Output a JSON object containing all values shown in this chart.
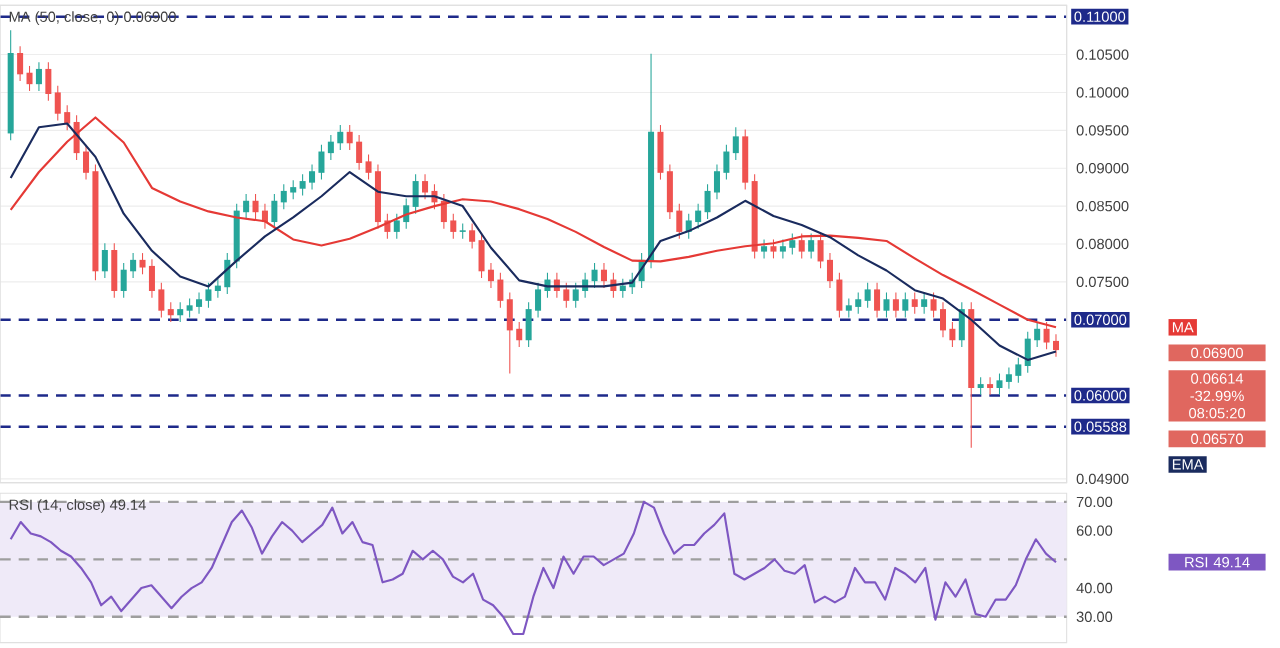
{
  "chart_data": [
    {
      "type": "candlestick",
      "categories": [
        null,
        null,
        null,
        null,
        null,
        null,
        null,
        null,
        null,
        null,
        null,
        null,
        null,
        null,
        null,
        null,
        null,
        null,
        null,
        null,
        null,
        null,
        null,
        null,
        null,
        null,
        null,
        null,
        null,
        null,
        null,
        null,
        null,
        null,
        null,
        null,
        null,
        null,
        null,
        null,
        null,
        null,
        null,
        null,
        null,
        null,
        null,
        null,
        null,
        null,
        null,
        null,
        null,
        null,
        null,
        null,
        null,
        null,
        null,
        null,
        null,
        null,
        null,
        null,
        null,
        null,
        null,
        null,
        null,
        null,
        null,
        null,
        null,
        null,
        null,
        null,
        null,
        null,
        null,
        null,
        null,
        null,
        null,
        null,
        null,
        null,
        null,
        null,
        null,
        null,
        null,
        null,
        null,
        null,
        null,
        null,
        null,
        null,
        null,
        null,
        null,
        null,
        null,
        null,
        null,
        null,
        null,
        null,
        null,
        null,
        null,
        null
      ],
      "ohlc": [
        [
          0.0947,
          0.1082,
          0.0937,
          0.1051
        ],
        [
          0.1051,
          0.1061,
          0.1015,
          0.1025
        ],
        [
          0.1025,
          0.1035,
          0.1002,
          0.1012
        ],
        [
          0.1012,
          0.104,
          0.1002,
          0.103
        ],
        [
          0.103,
          0.104,
          0.0989,
          0.0999
        ],
        [
          0.0999,
          0.1009,
          0.0963,
          0.0973
        ],
        [
          0.0973,
          0.0983,
          0.095,
          0.096
        ],
        [
          0.096,
          0.097,
          0.0911,
          0.0921
        ],
        [
          0.0921,
          0.0931,
          0.0885,
          0.0895
        ],
        [
          0.0895,
          0.0905,
          0.0752,
          0.0765
        ],
        [
          0.0765,
          0.0801,
          0.0755,
          0.0791
        ],
        [
          0.0791,
          0.0801,
          0.0729,
          0.0739
        ],
        [
          0.0739,
          0.0775,
          0.0729,
          0.0765
        ],
        [
          0.0765,
          0.0788,
          0.0755,
          0.0778
        ],
        [
          0.0778,
          0.0788,
          0.076,
          0.077
        ],
        [
          0.077,
          0.078,
          0.0729,
          0.0739
        ],
        [
          0.0739,
          0.0749,
          0.0703,
          0.0713
        ],
        [
          0.0713,
          0.0723,
          0.0697,
          0.0707
        ],
        [
          0.0707,
          0.0723,
          0.0697,
          0.0713
        ],
        [
          0.0713,
          0.0728,
          0.0703,
          0.0718
        ],
        [
          0.0718,
          0.0736,
          0.0708,
          0.0726
        ],
        [
          0.0726,
          0.0749,
          0.0716,
          0.0739
        ],
        [
          0.0739,
          0.0754,
          0.0729,
          0.0744
        ],
        [
          0.0744,
          0.0788,
          0.0734,
          0.0778
        ],
        [
          0.0778,
          0.0853,
          0.0768,
          0.0843
        ],
        [
          0.0843,
          0.0866,
          0.0833,
          0.0856
        ],
        [
          0.0856,
          0.0866,
          0.0833,
          0.0843
        ],
        [
          0.0843,
          0.0853,
          0.082,
          0.083
        ],
        [
          0.083,
          0.0866,
          0.082,
          0.0856
        ],
        [
          0.0856,
          0.0879,
          0.0846,
          0.0869
        ],
        [
          0.0869,
          0.0884,
          0.0859,
          0.0874
        ],
        [
          0.0874,
          0.0892,
          0.0864,
          0.0882
        ],
        [
          0.0882,
          0.0905,
          0.0872,
          0.0895
        ],
        [
          0.0895,
          0.0931,
          0.0885,
          0.0921
        ],
        [
          0.0921,
          0.0944,
          0.0911,
          0.0934
        ],
        [
          0.0934,
          0.0957,
          0.0924,
          0.0947
        ],
        [
          0.0947,
          0.0957,
          0.0924,
          0.0934
        ],
        [
          0.0934,
          0.0944,
          0.0898,
          0.0908
        ],
        [
          0.0908,
          0.0918,
          0.0885,
          0.0895
        ],
        [
          0.0895,
          0.0905,
          0.082,
          0.083
        ],
        [
          0.083,
          0.084,
          0.0807,
          0.0817
        ],
        [
          0.0817,
          0.084,
          0.0807,
          0.083
        ],
        [
          0.083,
          0.086,
          0.082,
          0.085
        ],
        [
          0.085,
          0.0892,
          0.084,
          0.0882
        ],
        [
          0.0882,
          0.0892,
          0.0859,
          0.0869
        ],
        [
          0.0869,
          0.0879,
          0.0846,
          0.0856
        ],
        [
          0.0856,
          0.0866,
          0.082,
          0.083
        ],
        [
          0.083,
          0.084,
          0.0807,
          0.0817
        ],
        [
          0.0817,
          0.0827,
          0.0807,
          0.0817
        ],
        [
          0.0817,
          0.0827,
          0.0794,
          0.0804
        ],
        [
          0.0804,
          0.0814,
          0.0755,
          0.0765
        ],
        [
          0.0765,
          0.0775,
          0.0742,
          0.0752
        ],
        [
          0.0752,
          0.0762,
          0.0716,
          0.0726
        ],
        [
          0.0726,
          0.0736,
          0.0629,
          0.0687
        ],
        [
          0.0687,
          0.0697,
          0.0664,
          0.0674
        ],
        [
          0.0674,
          0.0723,
          0.0664,
          0.0713
        ],
        [
          0.0713,
          0.0749,
          0.0703,
          0.0739
        ],
        [
          0.0739,
          0.0762,
          0.0729,
          0.0752
        ],
        [
          0.0752,
          0.0762,
          0.0729,
          0.0739
        ],
        [
          0.0739,
          0.0749,
          0.0716,
          0.0726
        ],
        [
          0.0726,
          0.0749,
          0.0716,
          0.0739
        ],
        [
          0.0739,
          0.0762,
          0.0729,
          0.0752
        ],
        [
          0.0752,
          0.0775,
          0.0742,
          0.0765
        ],
        [
          0.0765,
          0.0775,
          0.0742,
          0.0752
        ],
        [
          0.0752,
          0.0762,
          0.0729,
          0.0739
        ],
        [
          0.0739,
          0.0754,
          0.0729,
          0.0744
        ],
        [
          0.0744,
          0.0762,
          0.0734,
          0.0752
        ],
        [
          0.0752,
          0.0788,
          0.0742,
          0.0778
        ],
        [
          0.0778,
          0.1051,
          0.0768,
          0.0947
        ],
        [
          0.0947,
          0.0957,
          0.0885,
          0.0895
        ],
        [
          0.0895,
          0.0905,
          0.0833,
          0.0843
        ],
        [
          0.0843,
          0.0853,
          0.0807,
          0.0817
        ],
        [
          0.0817,
          0.084,
          0.0807,
          0.083
        ],
        [
          0.083,
          0.0853,
          0.082,
          0.0843
        ],
        [
          0.0843,
          0.0879,
          0.0833,
          0.0869
        ],
        [
          0.0869,
          0.0905,
          0.0859,
          0.0895
        ],
        [
          0.0895,
          0.0931,
          0.0885,
          0.0921
        ],
        [
          0.0921,
          0.0954,
          0.0911,
          0.0941
        ],
        [
          0.0941,
          0.0951,
          0.0872,
          0.0882
        ],
        [
          0.0882,
          0.0892,
          0.0781,
          0.0791
        ],
        [
          0.0791,
          0.0806,
          0.0781,
          0.0796
        ],
        [
          0.0796,
          0.0806,
          0.0781,
          0.0791
        ],
        [
          0.0791,
          0.0806,
          0.0781,
          0.0796
        ],
        [
          0.0796,
          0.0814,
          0.0786,
          0.0804
        ],
        [
          0.0804,
          0.0814,
          0.0781,
          0.0791
        ],
        [
          0.0791,
          0.0814,
          0.0781,
          0.0804
        ],
        [
          0.0804,
          0.0814,
          0.0768,
          0.0778
        ],
        [
          0.0778,
          0.0788,
          0.0742,
          0.0752
        ],
        [
          0.0752,
          0.0762,
          0.0703,
          0.0713
        ],
        [
          0.0713,
          0.0728,
          0.0703,
          0.0718
        ],
        [
          0.0718,
          0.0736,
          0.0708,
          0.0726
        ],
        [
          0.0726,
          0.0749,
          0.0716,
          0.0739
        ],
        [
          0.0739,
          0.0749,
          0.0703,
          0.0713
        ],
        [
          0.0713,
          0.0736,
          0.0703,
          0.0726
        ],
        [
          0.0726,
          0.0736,
          0.0703,
          0.0713
        ],
        [
          0.0713,
          0.0736,
          0.0703,
          0.0726
        ],
        [
          0.0726,
          0.0736,
          0.0708,
          0.0718
        ],
        [
          0.0718,
          0.0736,
          0.0708,
          0.0726
        ],
        [
          0.0726,
          0.0736,
          0.0703,
          0.0713
        ],
        [
          0.0713,
          0.0723,
          0.0677,
          0.0687
        ],
        [
          0.0687,
          0.0697,
          0.0664,
          0.0674
        ],
        [
          0.0674,
          0.0723,
          0.0664,
          0.0713
        ],
        [
          0.0713,
          0.0723,
          0.0531,
          0.0611
        ],
        [
          0.0611,
          0.0624,
          0.0601,
          0.0614
        ],
        [
          0.0614,
          0.0624,
          0.0601,
          0.0611
        ],
        [
          0.0611,
          0.0629,
          0.0601,
          0.0619
        ],
        [
          0.0619,
          0.0637,
          0.0609,
          0.0627
        ],
        [
          0.0627,
          0.065,
          0.0617,
          0.064
        ],
        [
          0.064,
          0.0684,
          0.063,
          0.0674
        ],
        [
          0.0674,
          0.0697,
          0.0664,
          0.0687
        ],
        [
          0.0687,
          0.0697,
          0.0661,
          0.0671
        ],
        [
          0.0671,
          0.0681,
          0.0651,
          0.0661
        ]
      ],
      "colors": [
        "#26a69a",
        "#ef5350",
        "#ef5350",
        "#26a69a",
        "#ef5350",
        "#ef5350",
        "#ef5350",
        "#ef5350",
        "#ef5350",
        "#ef5350",
        "#26a69a",
        "#ef5350",
        "#26a69a",
        "#26a69a",
        "#ef5350",
        "#ef5350",
        "#ef5350",
        "#ef5350",
        "#26a69a",
        "#26a69a",
        "#26a69a",
        "#26a69a",
        "#26a69a",
        "#26a69a",
        "#26a69a",
        "#26a69a",
        "#ef5350",
        "#ef5350",
        "#26a69a",
        "#26a69a",
        "#26a69a",
        "#26a69a",
        "#26a69a",
        "#26a69a",
        "#26a69a",
        "#26a69a",
        "#ef5350",
        "#ef5350",
        "#ef5350",
        "#ef5350",
        "#ef5350",
        "#26a69a",
        "#26a69a",
        "#26a69a",
        "#ef5350",
        "#ef5350",
        "#ef5350",
        "#ef5350",
        "#26a69a",
        "#ef5350",
        "#ef5350",
        "#ef5350",
        "#ef5350",
        "#ef5350",
        "#ef5350",
        "#26a69a",
        "#26a69a",
        "#26a69a",
        "#ef5350",
        "#ef5350",
        "#26a69a",
        "#26a69a",
        "#26a69a",
        "#ef5350",
        "#ef5350",
        "#26a69a",
        "#26a69a",
        "#26a69a",
        "#26a69a",
        "#ef5350",
        "#ef5350",
        "#ef5350",
        "#26a69a",
        "#26a69a",
        "#26a69a",
        "#26a69a",
        "#26a69a",
        "#26a69a",
        "#ef5350",
        "#ef5350",
        "#26a69a",
        "#ef5350",
        "#26a69a",
        "#26a69a",
        "#ef5350",
        "#26a69a",
        "#ef5350",
        "#ef5350",
        "#ef5350",
        "#26a69a",
        "#26a69a",
        "#26a69a",
        "#ef5350",
        "#26a69a",
        "#ef5350",
        "#26a69a",
        "#ef5350",
        "#26a69a",
        "#ef5350",
        "#ef5350",
        "#ef5350",
        "#26a69a",
        "#ef5350",
        "#26a69a",
        "#ef5350",
        "#26a69a",
        "#26a69a",
        "#26a69a",
        "#26a69a",
        "#26a69a",
        "#ef5350",
        "#ef5350"
      ],
      "ylim": [
        0.0485,
        0.1115
      ],
      "yticks": [
        {
          "value": 0.105,
          "label": "0.10500"
        },
        {
          "value": 0.1,
          "label": "0.10000"
        },
        {
          "value": 0.095,
          "label": "0.09500"
        },
        {
          "value": 0.09,
          "label": "0.09000"
        },
        {
          "value": 0.085,
          "label": "0.08500"
        },
        {
          "value": 0.08,
          "label": "0.08000"
        },
        {
          "value": 0.075,
          "label": "0.07500"
        },
        {
          "value": 0.049,
          "label": "0.04900"
        }
      ],
      "grid": "y",
      "tick_labels": "y",
      "ref_lines": [
        {
          "axis": "y",
          "value": 0.11,
          "label": "0.11000",
          "color": "#1e2a8a",
          "line_style": "dashed"
        },
        {
          "axis": "y",
          "value": 0.07,
          "label": "0.07000",
          "color": "#1e2a8a",
          "line_style": "dashed"
        },
        {
          "axis": "y",
          "value": 0.06,
          "label": "0.06000",
          "color": "#1e2a8a",
          "line_style": "dashed"
        },
        {
          "axis": "y",
          "value": 0.05588,
          "label": "0.05588",
          "color": "#1e2a8a",
          "line_style": "dashed"
        }
      ],
      "annotations": [
        "MA (50, close, 0) 0.06900",
        "0.06900",
        "0.06614 -32.99% 08:05:20",
        "0.06570"
      ]
    },
    {
      "type": "line",
      "categories": [
        null,
        null,
        null,
        null,
        null,
        null,
        null,
        null,
        null,
        null,
        null,
        null,
        null,
        null,
        null,
        null,
        null,
        null,
        null,
        null,
        null,
        null,
        null,
        null,
        null,
        null,
        null,
        null,
        null,
        null,
        null,
        null,
        null,
        null,
        null,
        null,
        null,
        null
      ],
      "series": [
        {
          "name": "MA",
          "color": "#e53935",
          "values": [
            0.0845,
            0.0895,
            0.0935,
            0.0967,
            0.0934,
            0.0874,
            0.0856,
            0.0843,
            0.0835,
            0.083,
            0.0806,
            0.0798,
            0.0807,
            0.0822,
            0.0839,
            0.085,
            0.0859,
            0.0856,
            0.0846,
            0.0833,
            0.0816,
            0.0796,
            0.0778,
            0.0777,
            0.0783,
            0.0791,
            0.0797,
            0.0801,
            0.081,
            0.0811,
            0.0808,
            0.0804,
            0.0781,
            0.0759,
            0.074,
            0.072,
            0.07,
            0.069
          ]
        },
        {
          "name": "EMA",
          "color": "#1a2b5e",
          "values": [
            0.0887,
            0.0954,
            0.0959,
            0.0915,
            0.084,
            0.0791,
            0.0757,
            0.0744,
            0.0778,
            0.081,
            0.0835,
            0.0863,
            0.0895,
            0.0869,
            0.0863,
            0.0863,
            0.085,
            0.0795,
            0.0752,
            0.0744,
            0.0744,
            0.0744,
            0.0749,
            0.0804,
            0.0817,
            0.0835,
            0.0857,
            0.0837,
            0.0825,
            0.0809,
            0.0785,
            0.0765,
            0.0739,
            0.0728,
            0.07,
            0.0666,
            0.0647,
            0.0658
          ]
        }
      ],
      "ylim": [
        0.0485,
        0.1115
      ],
      "tick_labels": false
    },
    {
      "type": "line",
      "color": "#7e57c2",
      "categories": [
        null,
        null,
        null,
        null,
        null,
        null,
        null,
        null,
        null,
        null,
        null,
        null,
        null,
        null,
        null,
        null,
        null,
        null,
        null,
        null,
        null,
        null,
        null,
        null,
        null,
        null,
        null,
        null,
        null,
        null,
        null,
        null,
        null,
        null,
        null,
        null,
        null,
        null,
        null,
        null,
        null,
        null,
        null,
        null,
        null,
        null,
        null,
        null,
        null,
        null,
        null,
        null,
        null,
        null,
        null,
        null,
        null,
        null,
        null,
        null,
        null,
        null,
        null,
        null,
        null,
        null,
        null,
        null,
        null,
        null,
        null,
        null,
        null,
        null,
        null,
        null,
        null,
        null,
        null,
        null,
        null,
        null,
        null,
        null,
        null,
        null,
        null,
        null,
        null,
        null,
        null,
        null,
        null,
        null,
        null,
        null,
        null,
        null,
        null,
        null,
        null,
        null,
        null,
        null,
        null
      ],
      "values": [
        57,
        63,
        59,
        58,
        56,
        53,
        51,
        47,
        42,
        34,
        37,
        32,
        36,
        40,
        41,
        37,
        33,
        37,
        40,
        42,
        47,
        55,
        63,
        67,
        61,
        52,
        58,
        63,
        60,
        56,
        59,
        62,
        68,
        59,
        63,
        56,
        55,
        42,
        43,
        45,
        53,
        50,
        53,
        50,
        44,
        42,
        45,
        36,
        34,
        30,
        24,
        24,
        37,
        47,
        40,
        51,
        45,
        51,
        51,
        48,
        50,
        52,
        59,
        70,
        68,
        59,
        52,
        55,
        55,
        59,
        62,
        66,
        45,
        43,
        45,
        47,
        50,
        46,
        45,
        48,
        35,
        37,
        35,
        37,
        47,
        42,
        42,
        36,
        47,
        45,
        42,
        47,
        29,
        42,
        37,
        43,
        31,
        30,
        36,
        36,
        41,
        50,
        57,
        52,
        49
      ],
      "ylim": [
        21,
        73
      ],
      "yticks": [
        {
          "value": 70,
          "label": "70.00"
        },
        {
          "value": 60,
          "label": "60.00"
        },
        {
          "value": 40,
          "label": "40.00"
        },
        {
          "value": 30,
          "label": "30.00"
        }
      ],
      "tick_labels": "y",
      "bands": [
        {
          "axis": "y",
          "from": 30,
          "to": 70,
          "color": "#efeaf8"
        }
      ],
      "ref_lines": [
        {
          "axis": "y",
          "value": 70,
          "color": "#9e9e9e",
          "line_style": "dashed"
        },
        {
          "axis": "y",
          "value": 50,
          "color": "#9e9e9e",
          "line_style": "dashed"
        },
        {
          "axis": "y",
          "value": 30,
          "color": "#9e9e9e",
          "line_style": "dashed"
        }
      ],
      "annotations": [
        "RSI (14, close) 49.14",
        "RSI 49.14"
      ]
    }
  ]
}
